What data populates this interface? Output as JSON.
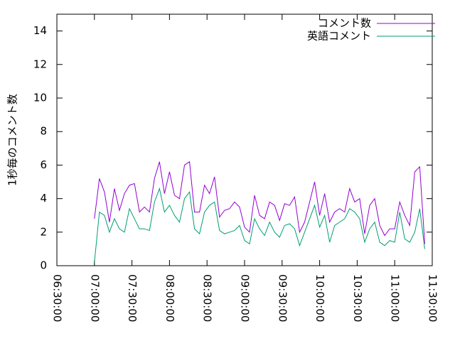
{
  "chart_data": {
    "type": "line",
    "ylabel": "1秒毎のコメント数",
    "x": [
      "07:00:00",
      "07:04:00",
      "07:08:00",
      "07:12:00",
      "07:16:00",
      "07:20:00",
      "07:24:00",
      "07:28:00",
      "07:32:00",
      "07:36:00",
      "07:40:00",
      "07:44:00",
      "07:48:00",
      "07:52:00",
      "07:56:00",
      "08:00:00",
      "08:04:00",
      "08:08:00",
      "08:12:00",
      "08:16:00",
      "08:20:00",
      "08:24:00",
      "08:28:00",
      "08:32:00",
      "08:36:00",
      "08:40:00",
      "08:44:00",
      "08:48:00",
      "08:52:00",
      "08:56:00",
      "09:00:00",
      "09:04:00",
      "09:08:00",
      "09:12:00",
      "09:16:00",
      "09:20:00",
      "09:24:00",
      "09:28:00",
      "09:32:00",
      "09:36:00",
      "09:40:00",
      "09:44:00",
      "09:48:00",
      "09:52:00",
      "09:56:00",
      "10:00:00",
      "10:04:00",
      "10:08:00",
      "10:12:00",
      "10:16:00",
      "10:20:00",
      "10:24:00",
      "10:28:00",
      "10:32:00",
      "10:36:00",
      "10:40:00",
      "10:44:00",
      "10:48:00",
      "10:52:00",
      "10:56:00",
      "11:00:00",
      "11:04:00",
      "11:08:00",
      "11:12:00",
      "11:16:00",
      "11:20:00",
      "11:24:00"
    ],
    "series": [
      {
        "name": "コメント数",
        "color": "#9400d3",
        "values": [
          2.8,
          5.2,
          4.4,
          2.6,
          4.6,
          3.3,
          4.3,
          4.8,
          4.9,
          3.2,
          3.5,
          3.2,
          5.2,
          6.2,
          4.3,
          5.6,
          4.2,
          4.0,
          6.0,
          6.2,
          3.2,
          3.2,
          4.8,
          4.3,
          5.3,
          2.9,
          3.3,
          3.4,
          3.8,
          3.5,
          2.3,
          2.0,
          4.2,
          3.0,
          2.8,
          3.8,
          3.6,
          2.7,
          3.7,
          3.6,
          4.1,
          2.0,
          2.6,
          3.8,
          5.0,
          3.0,
          4.3,
          2.6,
          3.2,
          3.4,
          3.2,
          4.6,
          3.8,
          4.0,
          1.9,
          3.6,
          4.0,
          2.4,
          1.8,
          2.2,
          2.2,
          3.8,
          3.0,
          2.4,
          5.6,
          5.9,
          1.3
        ]
      },
      {
        "name": "英語コメント",
        "color": "#009e73",
        "values": [
          0.2,
          3.2,
          3.0,
          2.0,
          2.8,
          2.2,
          2.0,
          3.4,
          2.8,
          2.2,
          2.2,
          2.1,
          3.8,
          4.6,
          3.2,
          3.6,
          3.0,
          2.6,
          4.0,
          4.4,
          2.2,
          1.9,
          3.2,
          3.6,
          3.8,
          2.1,
          1.9,
          2.0,
          2.1,
          2.4,
          1.5,
          1.3,
          2.8,
          2.2,
          1.8,
          2.6,
          2.0,
          1.7,
          2.4,
          2.5,
          2.2,
          1.2,
          2.0,
          2.8,
          3.6,
          2.3,
          3.0,
          1.4,
          2.4,
          2.6,
          2.8,
          3.4,
          3.2,
          2.8,
          1.4,
          2.2,
          2.6,
          1.4,
          1.2,
          1.5,
          1.4,
          3.2,
          1.6,
          1.4,
          2.0,
          3.4,
          1.0
        ]
      }
    ],
    "xlim": [
      "06:30:00",
      "11:30:00"
    ],
    "xticks": [
      "06:30:00",
      "07:00:00",
      "07:30:00",
      "08:00:00",
      "08:30:00",
      "09:00:00",
      "09:30:00",
      "10:00:00",
      "10:30:00",
      "11:00:00",
      "11:30:00"
    ],
    "ylim": [
      0,
      15
    ],
    "yticks": [
      0,
      2,
      4,
      6,
      8,
      10,
      12,
      14
    ],
    "legend": "top-right"
  }
}
